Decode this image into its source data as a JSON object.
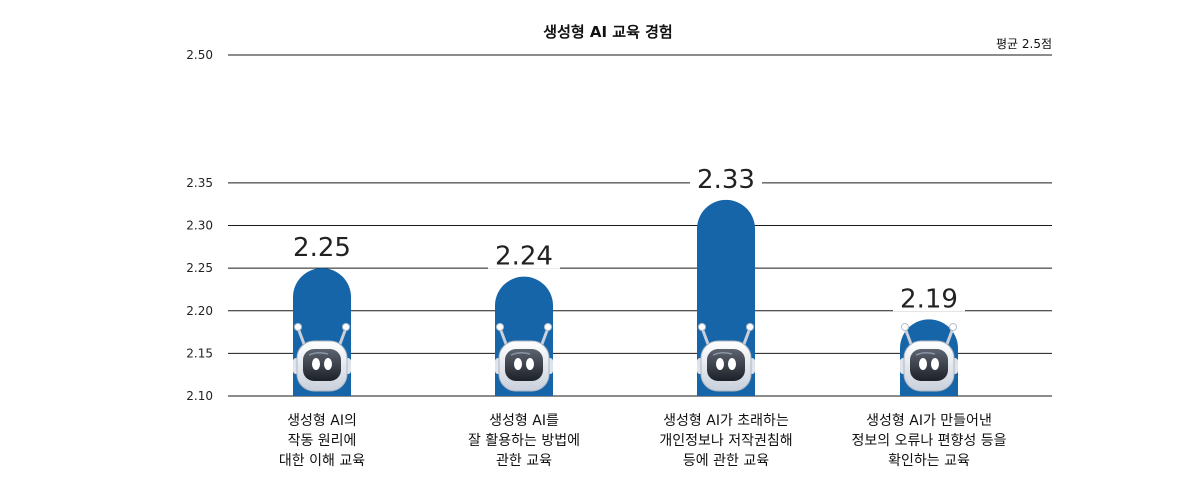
{
  "chart_data": {
    "type": "bar",
    "title": "생성형 AI 교육 경험",
    "average_label": "평균 2.5점",
    "ylim": [
      2.1,
      2.5
    ],
    "yticks": [
      "2.50",
      "2.35",
      "2.30",
      "2.25",
      "2.20",
      "2.15",
      "2.10"
    ],
    "ytick_values": [
      2.5,
      2.35,
      2.3,
      2.25,
      2.2,
      2.15,
      2.1
    ],
    "categories": [
      [
        "생성형 AI의",
        "작동 원리에",
        "대한 이해 교육"
      ],
      [
        "생성형 AI를",
        "잘 활용하는 방법에",
        "관한 교육"
      ],
      [
        "생성형 AI가 초래하는",
        "개인정보나 저작권침해",
        "등에 관한 교육"
      ],
      [
        "생성형 AI가 만들어낸",
        "정보의 오류나 편향성 등을",
        "확인하는 교육"
      ]
    ],
    "values": [
      2.25,
      2.24,
      2.33,
      2.19
    ],
    "value_labels": [
      "2.25",
      "2.24",
      "2.33",
      "2.19"
    ],
    "grid": true,
    "colors": {
      "bar": "#1565a8",
      "grid": "#1a1a1a"
    },
    "icon": "robot-icon"
  }
}
